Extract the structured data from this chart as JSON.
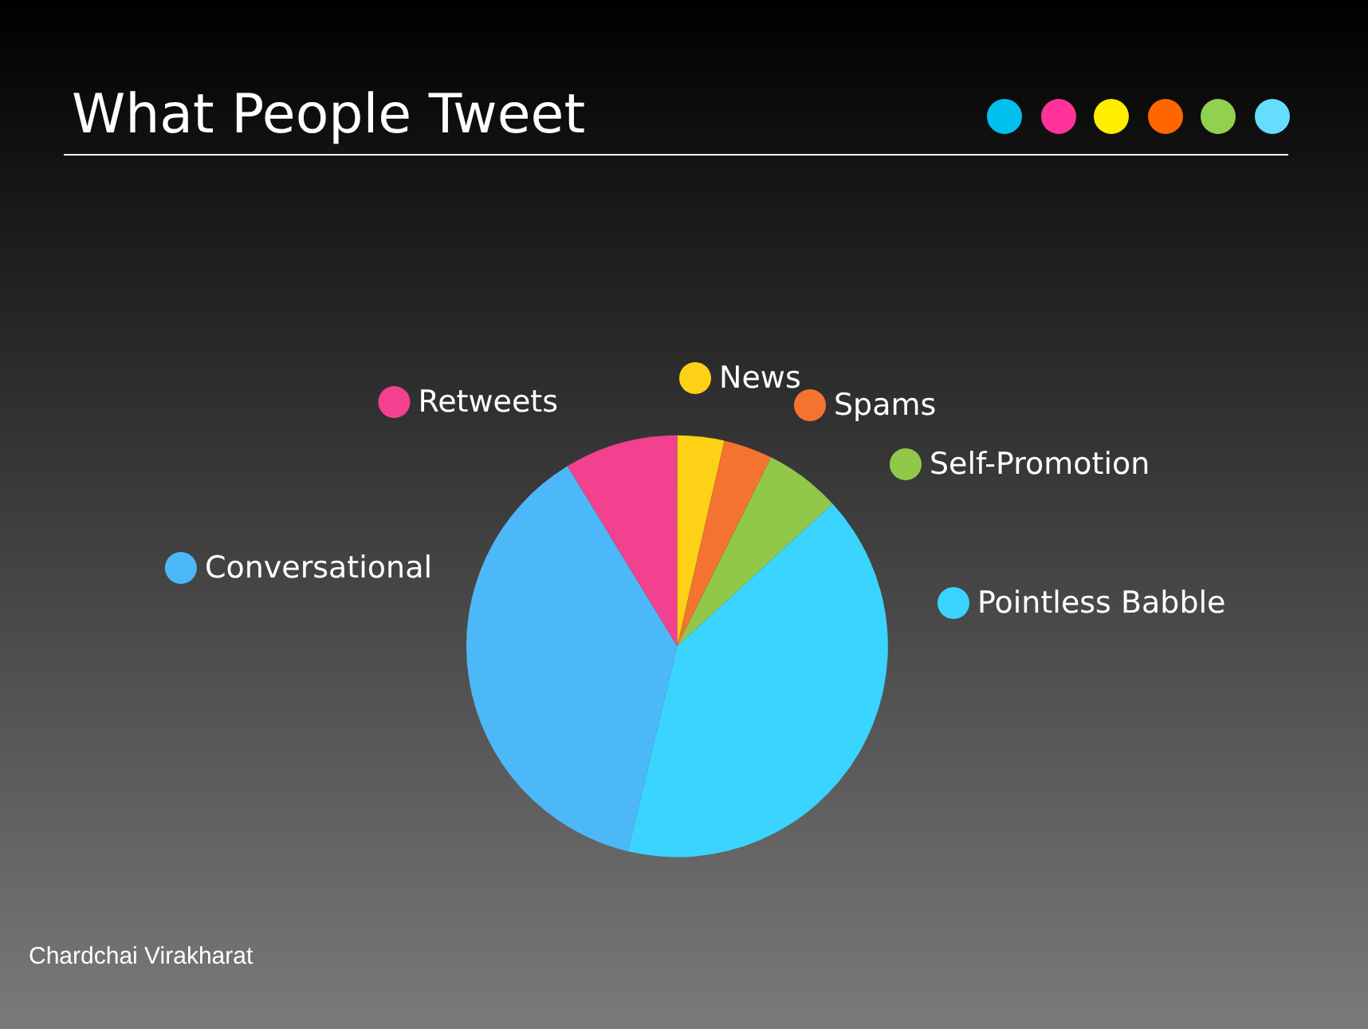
{
  "chart_data": {
    "type": "pie",
    "title": "What People Tweet",
    "categories": [
      "News",
      "Spams",
      "Self-Promotion",
      "Pointless Babble",
      "Conversational",
      "Retweets"
    ],
    "values": [
      3.6,
      3.75,
      5.85,
      40.55,
      37.55,
      8.7
    ],
    "colors": [
      "#fcd116",
      "#f47330",
      "#92c84a",
      "#3ad4ff",
      "#4db8f8",
      "#f2418e"
    ],
    "legend": "right",
    "annotations": [
      "Chardchai Virakharat"
    ]
  }
}
